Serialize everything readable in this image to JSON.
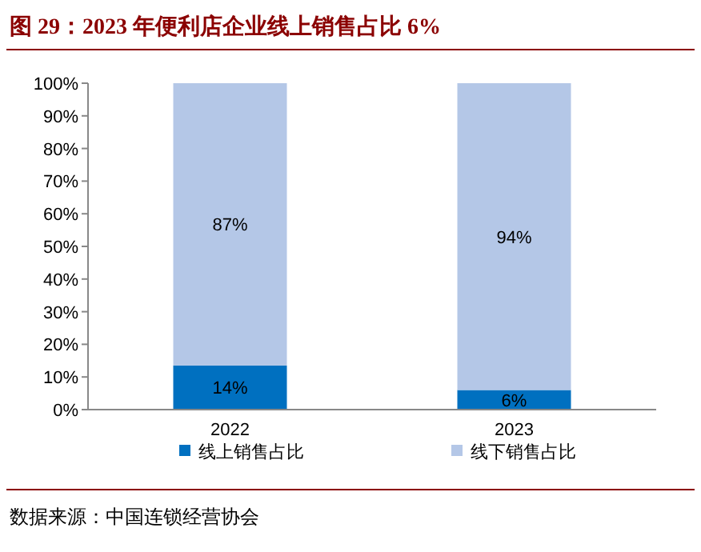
{
  "chart_data": {
    "type": "bar",
    "title": "图 29：2023 年便利店企业线上销售占比 6%",
    "categories": [
      "2022",
      "2023"
    ],
    "stacked": true,
    "series": [
      {
        "name": "线上销售占比",
        "color": "#0070c0",
        "values": [
          13.5,
          6
        ],
        "value_labels": [
          "14%",
          "6%"
        ]
      },
      {
        "name": "线下销售占比",
        "color": "#b4c7e7",
        "values": [
          86.5,
          94
        ],
        "value_labels": [
          "87%",
          "94%"
        ]
      }
    ],
    "ylim": [
      0,
      100
    ],
    "yticks": [
      {
        "value": 0,
        "label": "0%"
      },
      {
        "value": 10,
        "label": "10%"
      },
      {
        "value": 20,
        "label": "20%"
      },
      {
        "value": 30,
        "label": "30%"
      },
      {
        "value": 40,
        "label": "40%"
      },
      {
        "value": 50,
        "label": "50%"
      },
      {
        "value": 60,
        "label": "60%"
      },
      {
        "value": 70,
        "label": "70%"
      },
      {
        "value": 80,
        "label": "80%"
      },
      {
        "value": 90,
        "label": "90%"
      },
      {
        "value": 100,
        "label": "100%"
      }
    ],
    "legend": "bottom",
    "grid": false,
    "annotations": [
      "数据来源：中国连锁经营协会"
    ]
  }
}
